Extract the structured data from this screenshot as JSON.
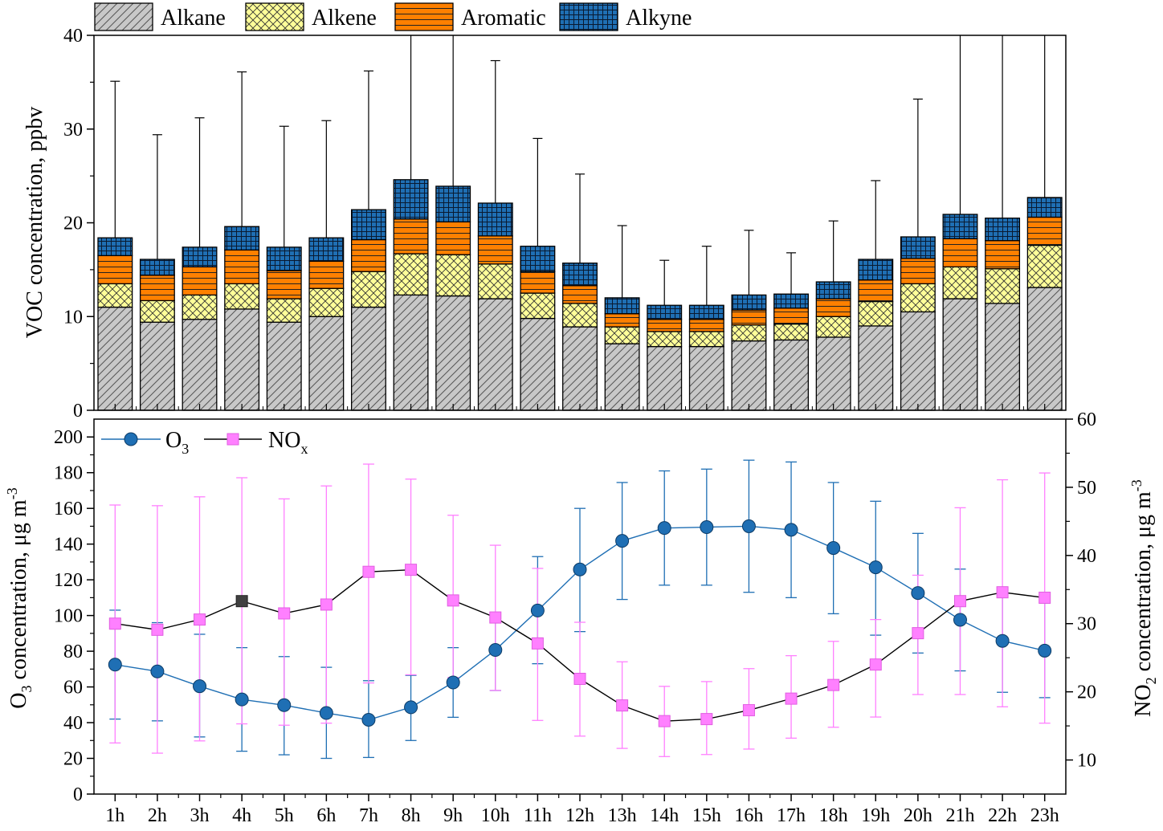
{
  "chart_data": [
    {
      "type": "bar",
      "stacked": true,
      "ylabel": "VOC concentration, ppbv",
      "ylim": [
        0,
        40
      ],
      "yticks": [
        "0",
        "10",
        "20",
        "30",
        "40"
      ],
      "categories": [
        "1h",
        "2h",
        "3h",
        "4h",
        "5h",
        "6h",
        "7h",
        "8h",
        "9h",
        "10h",
        "11h",
        "12h",
        "13h",
        "14h",
        "15h",
        "16h",
        "17h",
        "18h",
        "19h",
        "20h",
        "21h",
        "22h",
        "23h"
      ],
      "legend_position": "top",
      "series": [
        {
          "name": "Alkane",
          "pattern": "diagonal-hatch",
          "color": "#c8c8c8",
          "values": [
            11.0,
            9.4,
            9.7,
            10.8,
            9.4,
            10.0,
            11.0,
            12.3,
            12.2,
            11.9,
            9.8,
            8.9,
            7.1,
            6.8,
            6.8,
            7.4,
            7.5,
            7.8,
            9.0,
            10.5,
            11.9,
            11.4,
            13.1
          ]
        },
        {
          "name": "Alkene",
          "pattern": "crosshatch",
          "color": "#ffff99",
          "values": [
            2.5,
            2.3,
            2.6,
            2.7,
            2.5,
            3.0,
            3.8,
            4.4,
            4.4,
            3.7,
            2.7,
            2.5,
            1.8,
            1.6,
            1.6,
            1.7,
            1.7,
            2.2,
            2.6,
            3.0,
            3.4,
            3.7,
            4.5
          ]
        },
        {
          "name": "Aromatic",
          "pattern": "horizontal-lines",
          "color": "#ff8000",
          "values": [
            3.0,
            2.7,
            3.0,
            3.6,
            3.0,
            2.9,
            3.4,
            3.7,
            3.5,
            3.0,
            2.3,
            1.9,
            1.4,
            1.3,
            1.3,
            1.6,
            1.7,
            1.9,
            2.3,
            2.7,
            3.0,
            3.0,
            3.0
          ]
        },
        {
          "name": "Alkyne",
          "pattern": "grid",
          "color": "#1f6fb4",
          "values": [
            1.9,
            1.7,
            2.1,
            2.5,
            2.5,
            2.5,
            3.2,
            4.2,
            3.8,
            3.5,
            2.7,
            2.4,
            1.7,
            1.5,
            1.5,
            1.6,
            1.5,
            1.8,
            2.2,
            2.3,
            2.6,
            2.4,
            2.1
          ]
        }
      ],
      "error_upper": [
        35.1,
        29.4,
        31.2,
        36.1,
        30.3,
        30.9,
        36.2,
        40,
        40,
        37.3,
        29.0,
        25.2,
        19.7,
        16.0,
        17.5,
        19.2,
        16.8,
        20.2,
        24.5,
        33.2,
        40,
        40,
        40
      ]
    },
    {
      "type": "line",
      "categories": [
        "1h",
        "2h",
        "3h",
        "4h",
        "5h",
        "6h",
        "7h",
        "8h",
        "9h",
        "10h",
        "11h",
        "12h",
        "13h",
        "14h",
        "15h",
        "16h",
        "17h",
        "18h",
        "19h",
        "20h",
        "21h",
        "22h",
        "23h"
      ],
      "ylabel": "O3 concentration, μg m-3",
      "ylim": [
        0,
        210
      ],
      "yticks": [
        "0",
        "20",
        "40",
        "60",
        "80",
        "100",
        "120",
        "140",
        "160",
        "180",
        "200"
      ],
      "y2label": "NO2 concentration, μg m-3",
      "y2lim": [
        5,
        60
      ],
      "y2ticks": [
        "10",
        "20",
        "30",
        "40",
        "50",
        "60"
      ],
      "legend_position": "top-left",
      "series": [
        {
          "name": "O3",
          "axis": "left",
          "color": "#1f6fb4",
          "marker": "circle",
          "values": [
            72.5,
            68.7,
            60.4,
            53.0,
            49.8,
            45.4,
            41.6,
            48.6,
            62.5,
            80.7,
            102.8,
            125.8,
            141.8,
            149.0,
            149.5,
            150.0,
            148.0,
            137.8,
            127.0,
            112.6,
            97.6,
            85.8,
            80.3
          ],
          "err_low": [
            42,
            41,
            32,
            24,
            22,
            20,
            20.5,
            30,
            43,
            58,
            73,
            91,
            109,
            117,
            117,
            113,
            110,
            101,
            89,
            79,
            69,
            57,
            54
          ],
          "err_high": [
            103,
            96,
            89.5,
            82,
            77,
            71,
            63.5,
            66.5,
            82,
            100,
            133,
            160,
            174.5,
            181,
            182,
            187,
            186,
            174.5,
            164,
            146,
            126,
            115,
            107
          ]
        },
        {
          "name": "NOx",
          "axis": "right",
          "color": "#ff80ff",
          "marker": "square",
          "values": [
            30.0,
            29.1,
            30.6,
            33.3,
            31.5,
            32.8,
            37.6,
            37.9,
            33.4,
            30.9,
            27.1,
            21.9,
            18.0,
            15.7,
            16.0,
            17.3,
            19.0,
            21.0,
            24.0,
            28.6,
            33.3,
            34.6,
            33.8
          ],
          "err_low": [
            12.5,
            11.0,
            12.8,
            15.3,
            15.1,
            15.4,
            21.3,
            22.5,
            22.1,
            20.2,
            15.8,
            13.5,
            11.7,
            10.5,
            10.8,
            11.6,
            13.2,
            14.8,
            16.3,
            19.6,
            19.6,
            17.8,
            15.4
          ],
          "err_high": [
            47.4,
            47.3,
            48.6,
            51.4,
            48.3,
            50.2,
            53.4,
            51.2,
            45.9,
            41.5,
            38.1,
            30.2,
            24.4,
            20.8,
            21.5,
            23.4,
            25.3,
            27.4,
            30.6,
            37.1,
            47.0,
            51.1,
            52.1
          ],
          "highlight_index": 3,
          "highlight_color": "#404040"
        }
      ]
    }
  ]
}
